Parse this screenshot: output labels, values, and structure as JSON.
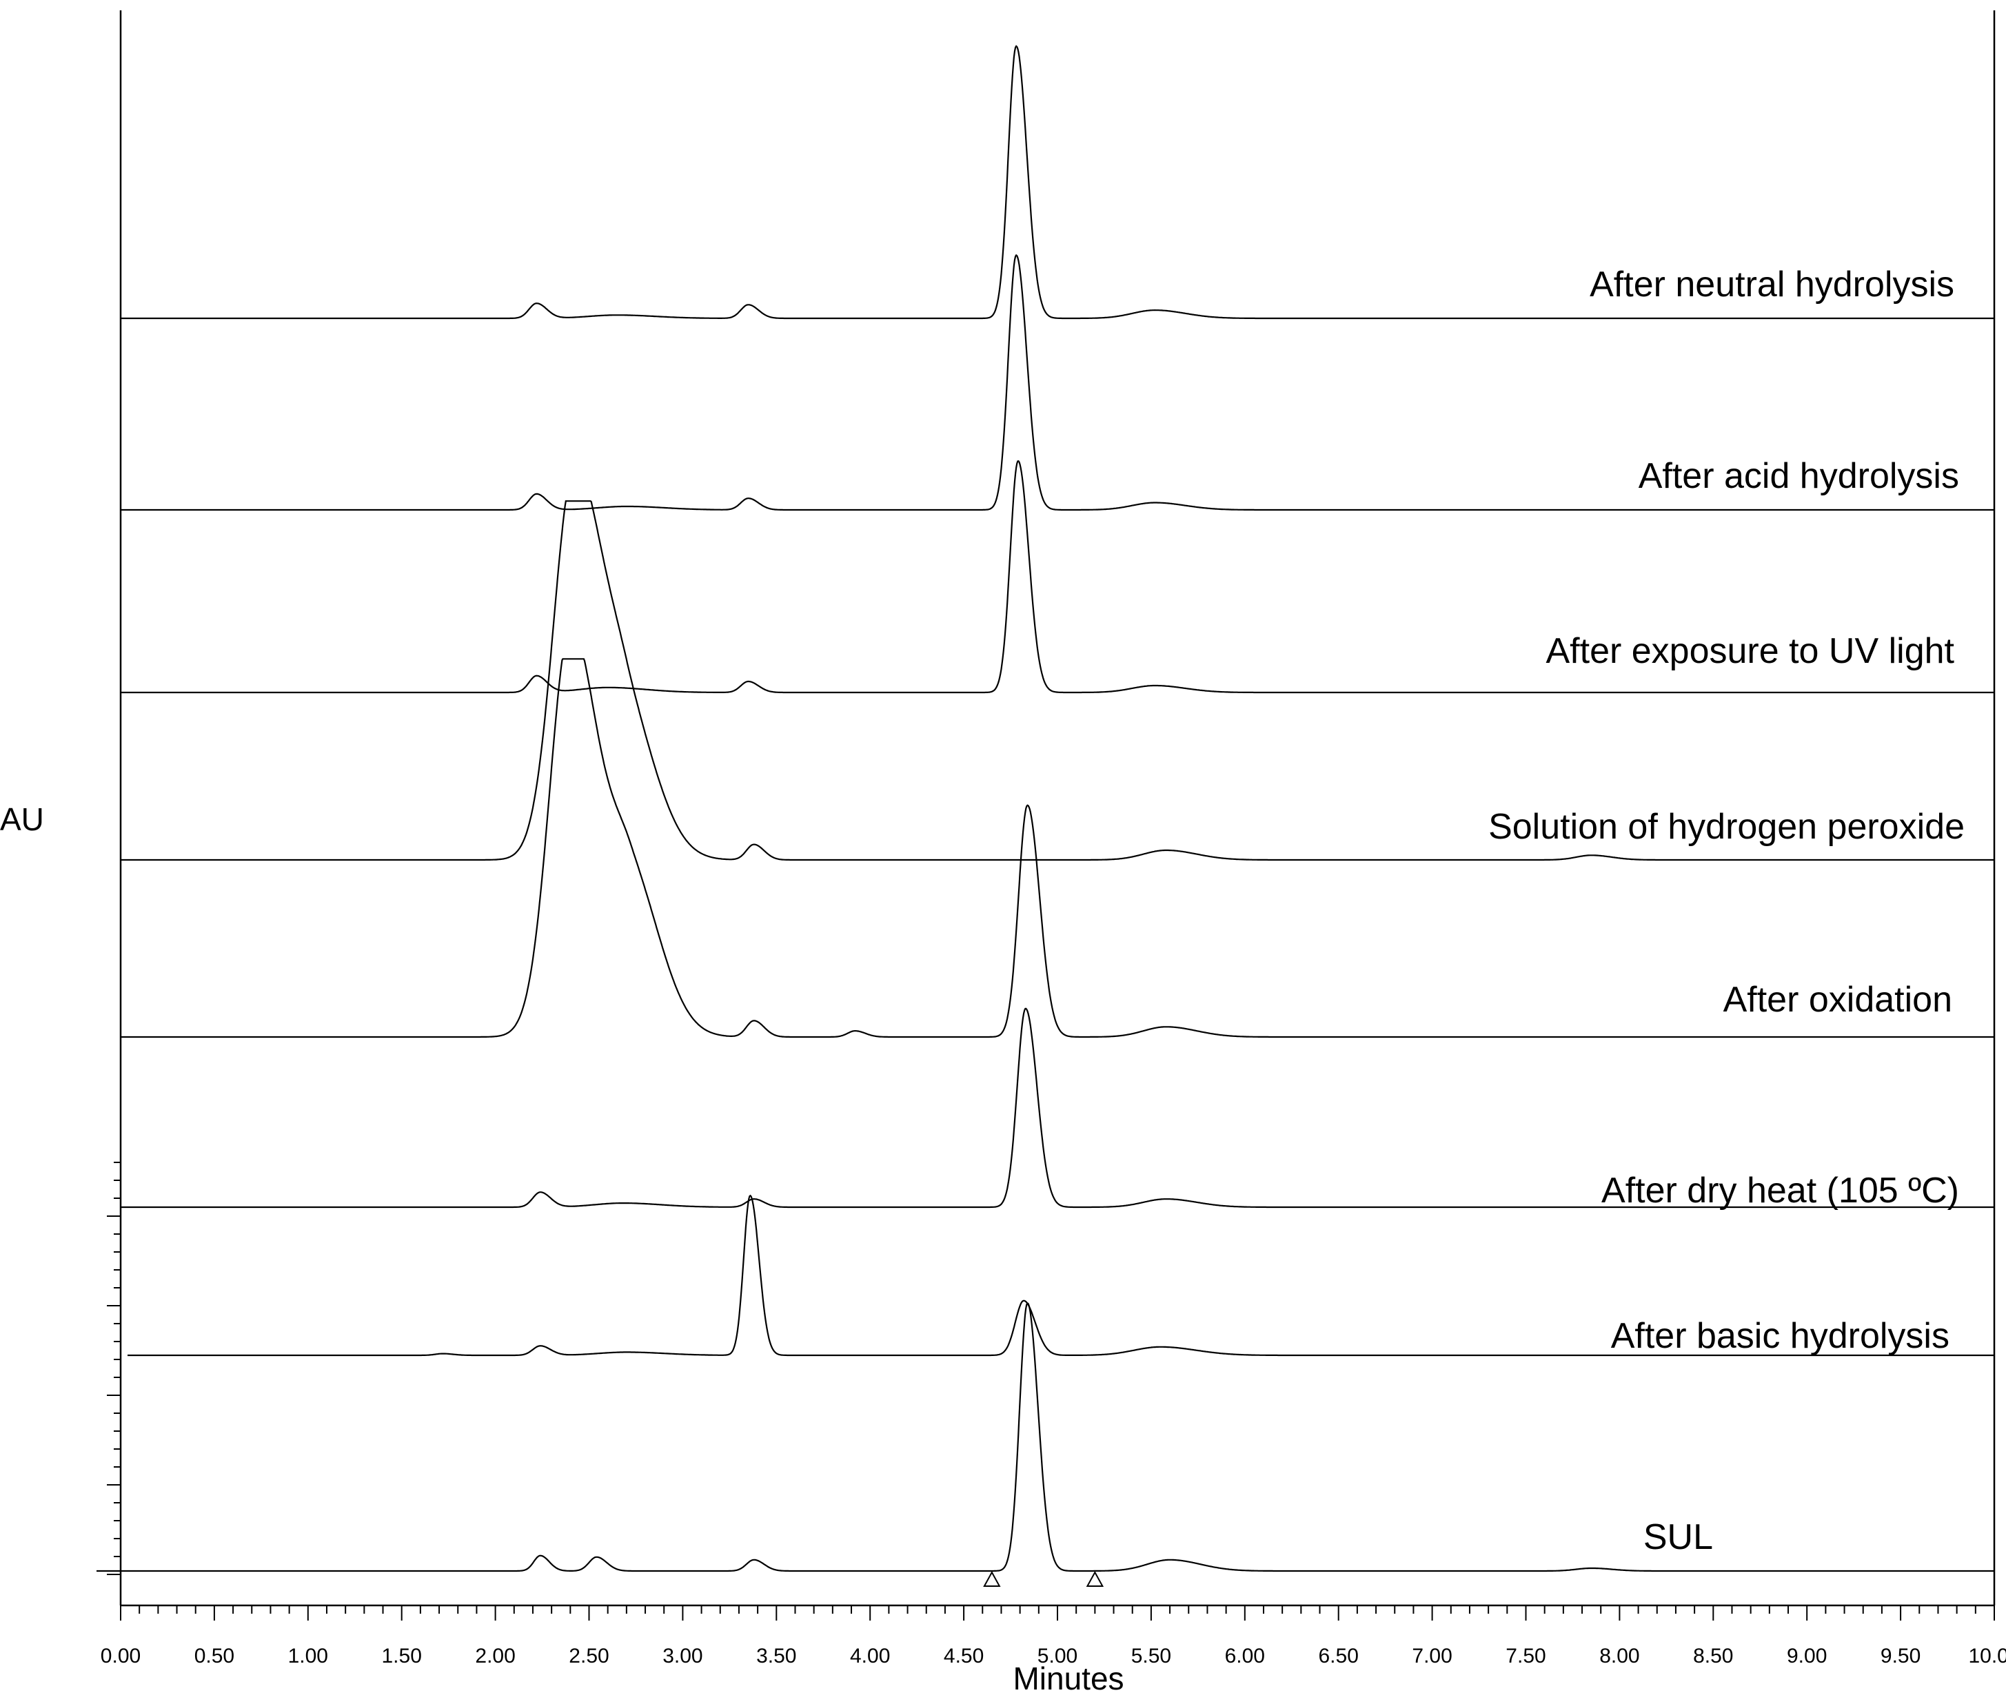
{
  "chart_data": {
    "type": "line",
    "title": "",
    "xlabel": "Minutes",
    "ylabel": "AU",
    "xlim": [
      0.0,
      10.0
    ],
    "x_ticks": [
      "0.00",
      "0.50",
      "1.00",
      "1.50",
      "2.00",
      "2.50",
      "3.00",
      "3.50",
      "4.00",
      "4.50",
      "5.00",
      "5.50",
      "6.00",
      "6.50",
      "7.00",
      "7.50",
      "8.00",
      "8.50",
      "9.00",
      "9.50",
      "10.00"
    ],
    "grid": false,
    "legend": "none",
    "series": [
      {
        "name": "After neutral hydrolysis",
        "peaks": [
          {
            "rt": 2.22,
            "height": 0.055,
            "width": 0.04
          },
          {
            "rt": 2.65,
            "height": 0.012,
            "width": 0.15
          },
          {
            "rt": 3.35,
            "height": 0.05,
            "width": 0.04
          },
          {
            "rt": 4.78,
            "height": 1.0,
            "width": 0.042
          },
          {
            "rt": 5.52,
            "height": 0.03,
            "width": 0.12
          }
        ]
      },
      {
        "name": "After acid hydrolysis",
        "peaks": [
          {
            "rt": 2.22,
            "height": 0.055,
            "width": 0.04
          },
          {
            "rt": 2.7,
            "height": 0.012,
            "width": 0.15
          },
          {
            "rt": 3.35,
            "height": 0.04,
            "width": 0.04
          },
          {
            "rt": 4.78,
            "height": 0.88,
            "width": 0.042
          },
          {
            "rt": 5.52,
            "height": 0.025,
            "width": 0.12
          }
        ]
      },
      {
        "name": "After exposure to UV light",
        "peaks": [
          {
            "rt": 2.22,
            "height": 0.06,
            "width": 0.04
          },
          {
            "rt": 2.6,
            "height": 0.018,
            "width": 0.15
          },
          {
            "rt": 3.35,
            "height": 0.04,
            "width": 0.04
          },
          {
            "rt": 4.79,
            "height": 0.84,
            "width": 0.042
          },
          {
            "rt": 5.52,
            "height": 0.025,
            "width": 0.12
          }
        ]
      },
      {
        "name": "Solution of hydrogen peroxide",
        "peaks": [
          {
            "rt": 2.42,
            "height": 1.0,
            "width": 0.11
          },
          {
            "rt": 2.7,
            "height": 0.35,
            "width": 0.12
          },
          {
            "rt": 3.38,
            "height": 0.04,
            "width": 0.04
          },
          {
            "rt": 5.58,
            "height": 0.025,
            "width": 0.12
          },
          {
            "rt": 7.85,
            "height": 0.012,
            "width": 0.08
          }
        ]
      },
      {
        "name": "After oxidation",
        "peaks": [
          {
            "rt": 2.4,
            "height": 1.0,
            "width": 0.11
          },
          {
            "rt": 2.72,
            "height": 0.38,
            "width": 0.12
          },
          {
            "rt": 3.38,
            "height": 0.04,
            "width": 0.04
          },
          {
            "rt": 3.92,
            "height": 0.015,
            "width": 0.04
          },
          {
            "rt": 4.84,
            "height": 0.57,
            "width": 0.048
          },
          {
            "rt": 5.58,
            "height": 0.025,
            "width": 0.12
          }
        ]
      },
      {
        "name": "After dry heat (105 ºC)",
        "peaks": [
          {
            "rt": 2.24,
            "height": 0.055,
            "width": 0.04
          },
          {
            "rt": 2.68,
            "height": 0.015,
            "width": 0.15
          },
          {
            "rt": 3.38,
            "height": 0.03,
            "width": 0.04
          },
          {
            "rt": 4.83,
            "height": 0.73,
            "width": 0.045
          },
          {
            "rt": 5.58,
            "height": 0.03,
            "width": 0.12
          }
        ]
      },
      {
        "name": "After basic hydrolysis",
        "peaks": [
          {
            "rt": 1.72,
            "height": 0.008,
            "width": 0.04
          },
          {
            "rt": 2.24,
            "height": 0.045,
            "width": 0.04
          },
          {
            "rt": 2.7,
            "height": 0.015,
            "width": 0.15
          },
          {
            "rt": 3.36,
            "height": 0.76,
            "width": 0.035
          },
          {
            "rt": 4.82,
            "height": 0.26,
            "width": 0.045
          },
          {
            "rt": 5.55,
            "height": 0.04,
            "width": 0.14
          }
        ]
      },
      {
        "name": "SUL",
        "peaks": [
          {
            "rt": 2.24,
            "height": 0.055,
            "width": 0.035
          },
          {
            "rt": 2.54,
            "height": 0.05,
            "width": 0.04
          },
          {
            "rt": 3.38,
            "height": 0.04,
            "width": 0.04
          },
          {
            "rt": 4.84,
            "height": 0.96,
            "width": 0.042
          },
          {
            "rt": 5.6,
            "height": 0.04,
            "width": 0.12
          },
          {
            "rt": 7.85,
            "height": 0.01,
            "width": 0.08
          }
        ]
      }
    ],
    "integration_markers": [
      4.65,
      5.2
    ]
  }
}
